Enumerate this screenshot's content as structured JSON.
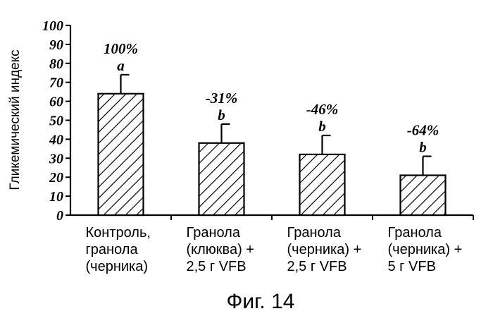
{
  "chart_data": {
    "type": "bar",
    "title": "",
    "xlabel": "",
    "ylabel": "Гликемический индекс",
    "ylim": [
      0,
      100
    ],
    "yticks": [
      0,
      10,
      20,
      30,
      40,
      50,
      60,
      70,
      80,
      90,
      100
    ],
    "categories": [
      [
        "Контроль,",
        "гранола",
        "(черника)"
      ],
      [
        "Гранола",
        "(клюква) +",
        "2,5 г VFB"
      ],
      [
        "Гранола",
        "(черника) +",
        "2,5 г VFB"
      ],
      [
        "Гранола",
        "(черника) +",
        "5 г VFB"
      ]
    ],
    "values": [
      64,
      38,
      32,
      21
    ],
    "errors": [
      10,
      10,
      10,
      10
    ],
    "percent_labels": [
      "100%",
      "-31%",
      "-46%",
      "-64%"
    ],
    "significance_letters": [
      "a",
      "b",
      "b",
      "b"
    ],
    "bar_pattern": "diagonal-hatch",
    "grid": false
  },
  "caption": "Фиг. 14"
}
